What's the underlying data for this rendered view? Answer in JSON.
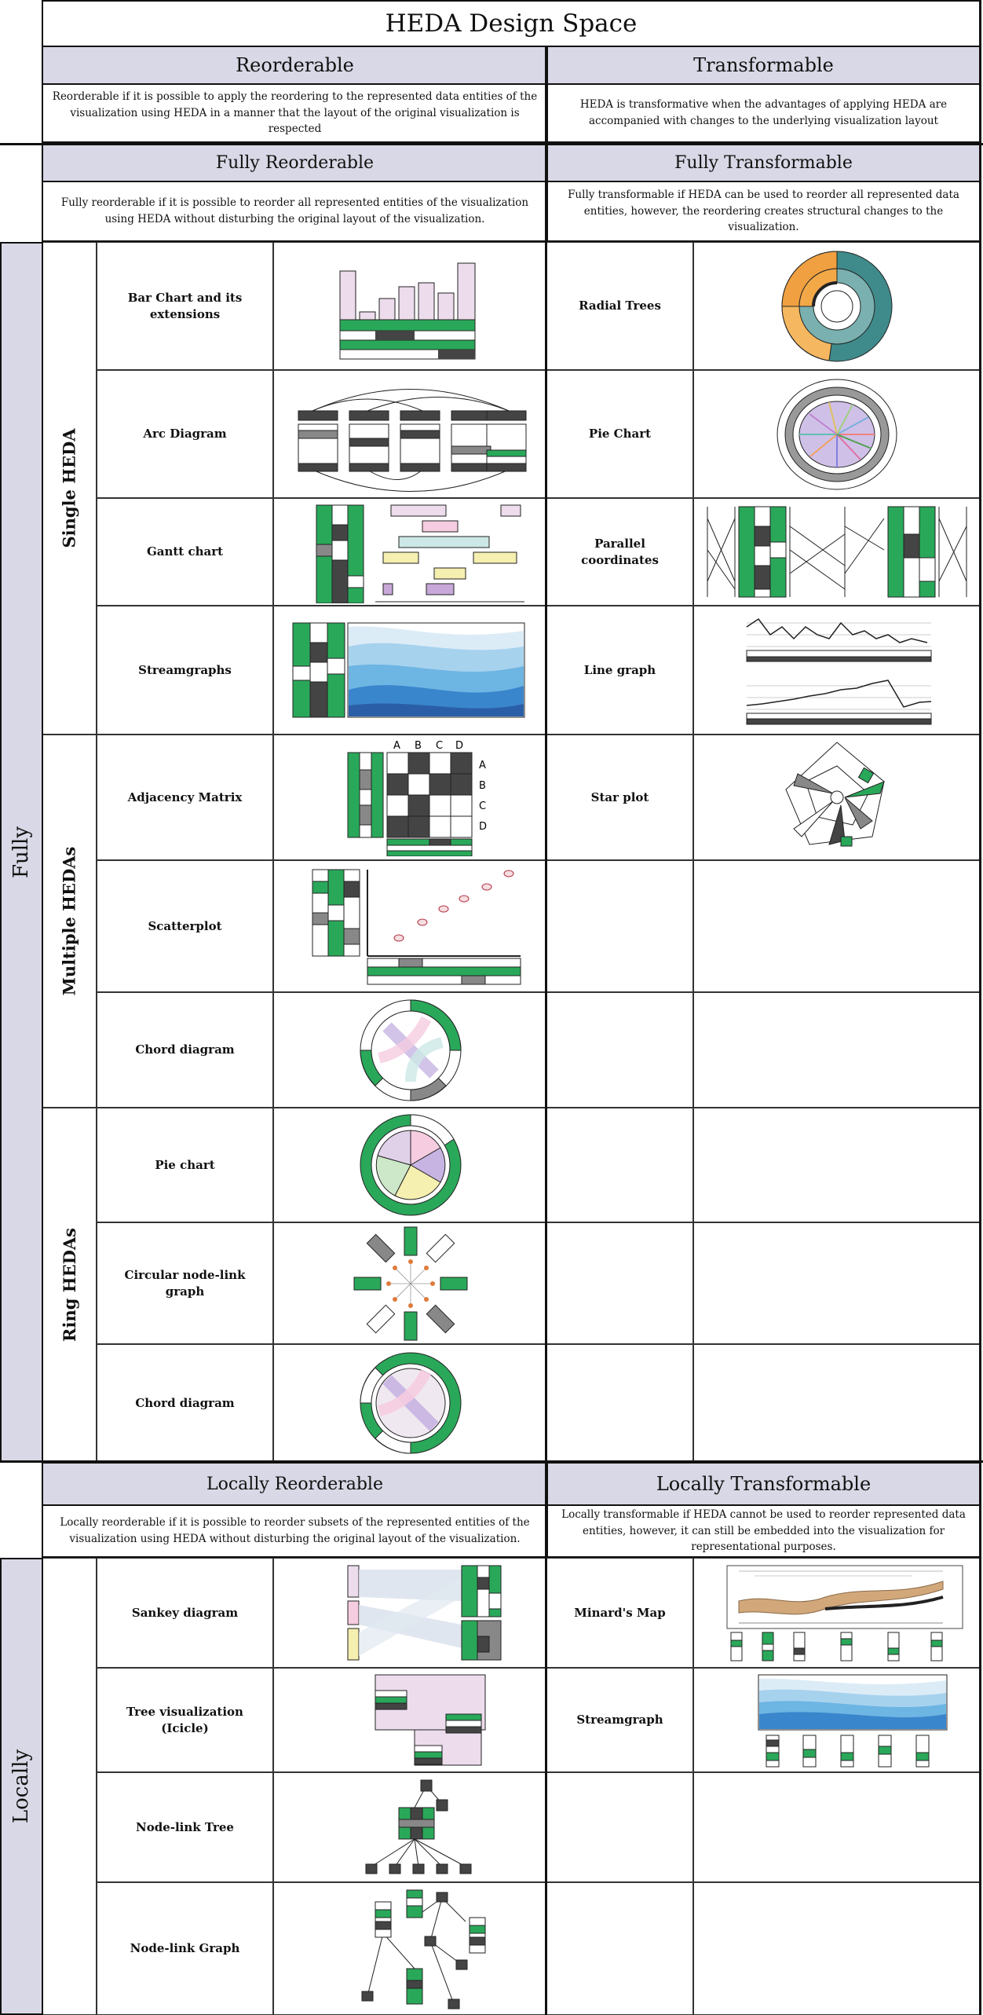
{
  "title": "HEDA Design Space",
  "columns": {
    "left": {
      "header": "Reorderable",
      "description": "Reorderable if it is possible to apply the reordering to the represented data entities of the visualization using HEDA in a manner that the layout of the original visualization is respected"
    },
    "right": {
      "header": "Transformable",
      "description": "HEDA is transformative when the advantages of applying HEDA are accompanied with changes to the underlying visualization layout"
    }
  },
  "fully_section": {
    "side_label": "Fully",
    "left_header": "Fully Reorderable",
    "left_description": "Fully reorderable if it is possible to reorder all represented entities of the visualization using HEDA without disturbing the original layout of the visualization.",
    "right_header": "Fully Transformable",
    "right_description": "Fully transformable if HEDA can be used to reorder all represented data entities, however, the reordering creates structural changes to the visualization.",
    "groups": [
      {
        "label": "Single HEDA",
        "items": [
          "Bar Chart and its extensions",
          "Arc Diagram",
          "Gantt chart",
          "Streamgraphs"
        ]
      },
      {
        "label": "Multiple HEDAs",
        "items": [
          "Adjacency Matrix",
          "Scatterplot",
          "Chord diagram"
        ]
      },
      {
        "label": "Ring HEDAs",
        "items": [
          "Pie chart",
          "Circular node-link graph",
          "Chord diagram"
        ]
      }
    ],
    "transformable_items": [
      "Radial Trees",
      "Pie Chart",
      "Parallel coordinates",
      "Line graph",
      "Star plot"
    ],
    "matrix_letters": [
      "A",
      "B",
      "C",
      "D"
    ]
  },
  "locally_section": {
    "side_label": "Locally",
    "left_header": "Locally Reorderable",
    "left_description": "Locally reorderable if it is possible to reorder subsets of the represented entities of the visualization using HEDA without disturbing the original layout of the visualization.",
    "right_header": "Locally Transformable",
    "right_description": "Locally transformable if HEDA cannot be used to reorder represented data entities, however, it can still be embedded into the visualization for representational purposes.",
    "items": [
      "Sankey diagram",
      "Tree visualization (Icicle)",
      "Node-link Tree",
      "Node-link Graph"
    ],
    "transformable_items": [
      "Minard's Map",
      "Streamgraph"
    ]
  },
  "colors": {
    "green": "#2aa85a",
    "dark": "#444444",
    "gray": "#999999",
    "header_bg": "#d8d8e6"
  }
}
